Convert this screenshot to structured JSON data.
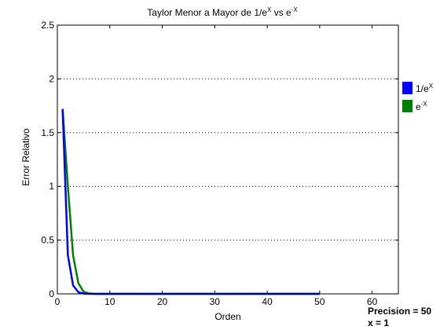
{
  "chart_data": {
    "type": "line",
    "title": {
      "prefix": "Taylor Menor a Mayor de 1/e",
      "sup1": "X",
      "mid": " vs e",
      "sup2": "-X"
    },
    "xlabel": "Orden",
    "ylabel": "Error Relativo",
    "xlim": [
      0,
      65
    ],
    "ylim": [
      0,
      2.5
    ],
    "xticks": [
      0,
      10,
      20,
      30,
      40,
      50,
      60
    ],
    "yticks": [
      0,
      0.5,
      1,
      1.5,
      2,
      2.5
    ],
    "grid": "horizontal dotted",
    "legend_position": "right",
    "series": [
      {
        "name": "1/e",
        "name_sup": "X",
        "color": "#0000ff",
        "x": [
          1,
          2,
          3,
          4,
          5,
          6,
          7,
          8,
          9,
          10,
          15,
          20,
          25,
          30,
          35,
          40,
          45,
          50
        ],
        "y": [
          1.72,
          0.36,
          0.08,
          0.015,
          0.003,
          0.0005,
          0,
          0,
          0,
          0,
          0,
          0,
          0,
          0,
          0,
          0,
          0,
          0
        ]
      },
      {
        "name": "e",
        "name_sup": "-X",
        "color": "#008000",
        "x": [
          1,
          2,
          3,
          4,
          5,
          6,
          7,
          8,
          9,
          10,
          15,
          20,
          25,
          30,
          35,
          40,
          45,
          50
        ],
        "y": [
          1.72,
          1.0,
          0.36,
          0.1,
          0.02,
          0.004,
          0.0006,
          0,
          0,
          0,
          0,
          0,
          0,
          0,
          0,
          0,
          0,
          0
        ]
      }
    ]
  },
  "annotations": {
    "precision": "Precision = 50",
    "x_value": "x = 1"
  }
}
